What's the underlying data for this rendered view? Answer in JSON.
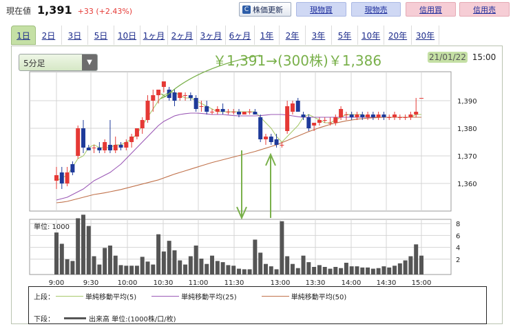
{
  "quote": {
    "label": "現在値",
    "price": "1,391",
    "change": "+33 (+2.43%)"
  },
  "toolbar": {
    "refresh_label": "株価更新",
    "refresh_icon": "refresh-icon",
    "buy_spot": "現物買",
    "sell_spot": "現物売",
    "buy_margin": "信用買",
    "sell_margin": "信用売"
  },
  "tabs": [
    "1日",
    "2日",
    "3日",
    "5日",
    "10日",
    "1ヶ月",
    "2ヶ月",
    "3ヶ月",
    "6ヶ月",
    "1年",
    "2年",
    "3年",
    "5年",
    "10年",
    "20年",
    "30年"
  ],
  "active_tab": 0,
  "interval": {
    "value": "5分足",
    "arrow_icon": "triangle-down-icon"
  },
  "annotation": "￥1,391→(300株)￥1,386",
  "datetime": {
    "date": "21/01/22",
    "time": "15:00"
  },
  "volume_unit": "単位: 1000",
  "colors": {
    "up": "#e53935",
    "down": "#1e3a9a",
    "ma5": "#a8c96a",
    "ma25": "#9b59b6",
    "ma50": "#c0714a",
    "volume": "#555555",
    "annotation": "#79b04a"
  },
  "legend": {
    "upper_label": "上段：",
    "lower_label": "下段：",
    "ma5": "単純移動平均(5)",
    "ma25": "単純移動平均(25)",
    "ma50": "単純移動平均(50)",
    "volume": "出来高 単位:(1000株/口/枚)"
  },
  "chart_data": {
    "type": "candlestick",
    "price_axis": {
      "ticks": [
        1360,
        1370,
        1380,
        1390
      ],
      "tick_labels": [
        "1,360",
        "1,370",
        "1,380",
        "1,390"
      ],
      "ylim": [
        1350,
        1395
      ]
    },
    "volume_axis": {
      "ticks": [
        2,
        4,
        6,
        8
      ],
      "ylim": [
        0,
        10
      ]
    },
    "x_tick_labels": [
      "9:00",
      "9:30",
      "10:00",
      "10:30",
      "11:00",
      "11:30",
      "13:00",
      "13:30",
      "14:00",
      "14:30",
      "15:00"
    ],
    "candles": [
      {
        "o": 1361,
        "h": 1366,
        "l": 1358,
        "c": 1363
      },
      {
        "o": 1364,
        "h": 1366,
        "l": 1358,
        "c": 1360
      },
      {
        "o": 1360,
        "h": 1366,
        "l": 1359,
        "c": 1364
      },
      {
        "o": 1367,
        "h": 1368,
        "l": 1363,
        "c": 1364
      },
      {
        "o": 1370,
        "h": 1381,
        "l": 1369,
        "c": 1380
      },
      {
        "o": 1380,
        "h": 1383,
        "l": 1371,
        "c": 1373
      },
      {
        "o": 1373,
        "h": 1374,
        "l": 1372,
        "c": 1372
      },
      {
        "o": 1373,
        "h": 1374,
        "l": 1371,
        "c": 1373
      },
      {
        "o": 1373,
        "h": 1375,
        "l": 1371,
        "c": 1372
      },
      {
        "o": 1372,
        "h": 1376,
        "l": 1371,
        "c": 1375
      },
      {
        "o": 1374,
        "h": 1383,
        "l": 1371,
        "c": 1372
      },
      {
        "o": 1372,
        "h": 1377,
        "l": 1371,
        "c": 1374
      },
      {
        "o": 1374,
        "h": 1375,
        "l": 1372,
        "c": 1373
      },
      {
        "o": 1373,
        "h": 1376,
        "l": 1372,
        "c": 1375
      },
      {
        "o": 1375,
        "h": 1378,
        "l": 1373,
        "c": 1377
      },
      {
        "o": 1377,
        "h": 1380,
        "l": 1376,
        "c": 1380
      },
      {
        "o": 1380,
        "h": 1384,
        "l": 1378,
        "c": 1383
      },
      {
        "o": 1383,
        "h": 1392,
        "l": 1382,
        "c": 1390
      },
      {
        "o": 1390,
        "h": 1394,
        "l": 1386,
        "c": 1392
      },
      {
        "o": 1392,
        "h": 1394,
        "l": 1389,
        "c": 1394
      },
      {
        "o": 1395,
        "h": 1397,
        "l": 1393,
        "c": 1397
      },
      {
        "o": 1394,
        "h": 1395,
        "l": 1390,
        "c": 1391
      },
      {
        "o": 1393,
        "h": 1394,
        "l": 1388,
        "c": 1390
      },
      {
        "o": 1391,
        "h": 1393,
        "l": 1390,
        "c": 1393
      },
      {
        "o": 1392,
        "h": 1393,
        "l": 1390,
        "c": 1392
      },
      {
        "o": 1392,
        "h": 1393,
        "l": 1390,
        "c": 1391
      },
      {
        "o": 1391,
        "h": 1392,
        "l": 1386,
        "c": 1387
      },
      {
        "o": 1388,
        "h": 1390,
        "l": 1386,
        "c": 1388
      },
      {
        "o": 1388,
        "h": 1390,
        "l": 1385,
        "c": 1386
      },
      {
        "o": 1386,
        "h": 1387,
        "l": 1385,
        "c": 1386
      },
      {
        "o": 1386,
        "h": 1388,
        "l": 1385,
        "c": 1387
      },
      {
        "o": 1387,
        "h": 1389,
        "l": 1385,
        "c": 1386
      },
      {
        "o": 1386,
        "h": 1387,
        "l": 1385,
        "c": 1386
      },
      {
        "o": 1386,
        "h": 1387,
        "l": 1385,
        "c": 1386
      },
      {
        "o": 1386,
        "h": 1387,
        "l": 1384,
        "c": 1385
      },
      {
        "o": 1385,
        "h": 1386,
        "l": 1385,
        "c": 1386
      },
      {
        "o": 1386,
        "h": 1387,
        "l": 1385,
        "c": 1386
      },
      {
        "o": 1386,
        "h": 1387,
        "l": 1385,
        "c": 1385
      },
      {
        "o": 1384,
        "h": 1385,
        "l": 1375,
        "c": 1376
      },
      {
        "o": 1376,
        "h": 1378,
        "l": 1374,
        "c": 1377
      },
      {
        "o": 1377,
        "h": 1378,
        "l": 1374,
        "c": 1375
      },
      {
        "o": 1376,
        "h": 1378,
        "l": 1373,
        "c": 1374
      },
      {
        "o": 1374,
        "h": 1375,
        "l": 1373,
        "c": 1374
      },
      {
        "o": 1379,
        "h": 1390,
        "l": 1378,
        "c": 1388
      },
      {
        "o": 1386,
        "h": 1390,
        "l": 1385,
        "c": 1389
      },
      {
        "o": 1390,
        "h": 1391,
        "l": 1386,
        "c": 1386
      },
      {
        "o": 1385,
        "h": 1386,
        "l": 1383,
        "c": 1384
      },
      {
        "o": 1384,
        "h": 1385,
        "l": 1379,
        "c": 1380
      },
      {
        "o": 1381,
        "h": 1382,
        "l": 1379,
        "c": 1382
      },
      {
        "o": 1382,
        "h": 1384,
        "l": 1381,
        "c": 1383
      },
      {
        "o": 1383,
        "h": 1384,
        "l": 1382,
        "c": 1383
      },
      {
        "o": 1382,
        "h": 1384,
        "l": 1381,
        "c": 1382
      },
      {
        "o": 1382,
        "h": 1385,
        "l": 1381,
        "c": 1384
      },
      {
        "o": 1384,
        "h": 1388,
        "l": 1383,
        "c": 1387
      },
      {
        "o": 1385,
        "h": 1386,
        "l": 1383,
        "c": 1385
      },
      {
        "o": 1385,
        "h": 1386,
        "l": 1383,
        "c": 1384
      },
      {
        "o": 1384,
        "h": 1386,
        "l": 1383,
        "c": 1385
      },
      {
        "o": 1385,
        "h": 1386,
        "l": 1383,
        "c": 1384
      },
      {
        "o": 1384,
        "h": 1386,
        "l": 1383,
        "c": 1385
      },
      {
        "o": 1385,
        "h": 1386,
        "l": 1383,
        "c": 1384
      },
      {
        "o": 1384,
        "h": 1386,
        "l": 1383,
        "c": 1385
      },
      {
        "o": 1385,
        "h": 1386,
        "l": 1383,
        "c": 1384
      },
      {
        "o": 1384,
        "h": 1385,
        "l": 1383,
        "c": 1384
      },
      {
        "o": 1384,
        "h": 1386,
        "l": 1383,
        "c": 1385
      },
      {
        "o": 1384,
        "h": 1385,
        "l": 1383,
        "c": 1384
      },
      {
        "o": 1384,
        "h": 1385,
        "l": 1383,
        "c": 1384
      },
      {
        "o": 1384,
        "h": 1386,
        "l": 1383,
        "c": 1385
      },
      {
        "o": 1385,
        "h": 1391,
        "l": 1384,
        "c": 1386
      },
      {
        "o": 1391,
        "h": 1391,
        "l": 1391,
        "c": 1391
      }
    ],
    "volume": [
      6.5,
      4.6,
      2.0,
      1.7,
      8.9,
      9.5,
      7.6,
      2.5,
      1.1,
      3.9,
      4.3,
      2.6,
      1.0,
      0.9,
      0.9,
      0.9,
      2.4,
      1.6,
      1.1,
      6.2,
      3.3,
      5.1,
      3.5,
      1.8,
      1.1,
      2.5,
      4.3,
      2.1,
      1.2,
      2.6,
      1.7,
      1.5,
      1.0,
      0.9,
      0.4,
      0.3,
      0.3,
      5.3,
      3.1,
      1.2,
      0.8,
      0.3,
      8.4,
      2.5,
      1.2,
      0.5,
      2.6,
      1.5,
      0.7,
      1.0,
      0.7,
      0.4,
      0.7,
      0.5,
      1.4,
      0.8,
      0.8,
      0.6,
      0.6,
      0.4,
      0.5,
      0.8,
      0.6,
      0.9,
      1.3,
      1.8,
      2.5,
      4.5,
      2.6
    ],
    "moving_averages": [
      {
        "name": "単純移動平均(5)",
        "values": [
          1361,
          1362,
          1363,
          1366,
          1369,
          1370,
          1373,
          1374,
          1373,
          1373,
          1373,
          1374,
          1374,
          1375,
          1376,
          1378,
          1381,
          1384,
          1387,
          1390,
          1392,
          1393,
          1393,
          1392,
          1391,
          1391,
          1390,
          1389,
          1388,
          1387,
          1386,
          1386,
          1386,
          1386,
          1386,
          1386,
          1386,
          1386,
          1384,
          1382,
          1380,
          1377,
          1375,
          1377,
          1379,
          1381,
          1384,
          1385,
          1384,
          1383,
          1382,
          1382,
          1383,
          1384,
          1385,
          1385,
          1385,
          1385,
          1384,
          1384,
          1384,
          1384,
          1384,
          1384,
          1384,
          1384,
          1384,
          1385,
          1385
        ]
      },
      {
        "name": "単純移動平均(25)",
        "values": [
          1354,
          1354.5,
          1355,
          1356,
          1357,
          1358,
          1359.5,
          1361,
          1362,
          1363,
          1364,
          1365.5,
          1367,
          1369,
          1371,
          1373,
          1375,
          1377,
          1379,
          1381,
          1382.5,
          1383.5,
          1384.5,
          1385,
          1385.3,
          1385.5,
          1385.5,
          1385.4,
          1385.2,
          1385,
          1385,
          1385,
          1384.8,
          1384.6,
          1384.5,
          1384.5,
          1384.5,
          1384.5,
          1384.6,
          1384.8,
          1385,
          1385,
          1385,
          1384.8,
          1384.5,
          1384.2,
          1384,
          1384,
          1384,
          1384,
          1384,
          1384,
          1384,
          1384,
          1384,
          1384,
          1384,
          1384,
          1384,
          1384,
          1384,
          1384,
          1384,
          1384,
          1384,
          1384,
          1384,
          1384,
          1384
        ]
      },
      {
        "name": "単純移動平均(50)",
        "values": [
          1353,
          1353.2,
          1353.5,
          1354,
          1354.5,
          1355,
          1355.5,
          1356,
          1356.3,
          1356.6,
          1357,
          1357.4,
          1357.8,
          1358.3,
          1358.8,
          1359.3,
          1359.8,
          1360.3,
          1360.8,
          1361.3,
          1362,
          1362.7,
          1363.4,
          1364,
          1364.6,
          1365.2,
          1365.8,
          1366.4,
          1367,
          1367.6,
          1368.1,
          1368.6,
          1369.1,
          1369.6,
          1370.1,
          1370.6,
          1371.1,
          1371.6,
          1372.2,
          1372.8,
          1373.4,
          1374,
          1374.8,
          1375.6,
          1376.4,
          1377.2,
          1378,
          1378.8,
          1379.5,
          1380.2,
          1380.8,
          1381.4,
          1381.9,
          1382.3,
          1382.7,
          1383,
          1383.3,
          1383.5,
          1383.7,
          1383.8,
          1383.9,
          1384,
          1384,
          1384,
          1384,
          1384,
          1384,
          1384,
          1384
        ]
      }
    ]
  }
}
